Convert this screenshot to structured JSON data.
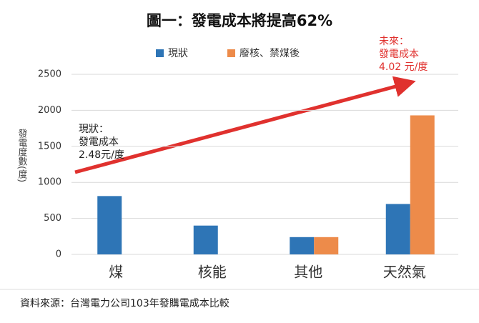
{
  "chart_data": {
    "type": "bar",
    "title": "圖一：發電成本將提高62%",
    "categories": [
      "煤",
      "核能",
      "其他",
      "天然氣"
    ],
    "series": [
      {
        "name": "現狀",
        "color": "#2e75b6",
        "values": [
          810,
          400,
          240,
          700
        ]
      },
      {
        "name": "廢核、禁煤後",
        "color": "#ed8b4a",
        "values": [
          null,
          null,
          240,
          1930
        ]
      }
    ],
    "ylabel": "發電度數(度)",
    "ylim": [
      0,
      2500
    ],
    "yticks": [
      0,
      500,
      1000,
      1500,
      2000,
      2500
    ],
    "grid": true,
    "annotations": [
      {
        "lines": [
          "現狀：",
          "發電成本",
          "2.48元/度"
        ]
      },
      {
        "lines": [
          "未來：",
          "發電成本",
          "4.02 元/度"
        ]
      }
    ],
    "source": "資料來源：台灣電力公司103年發購電成本比較"
  }
}
